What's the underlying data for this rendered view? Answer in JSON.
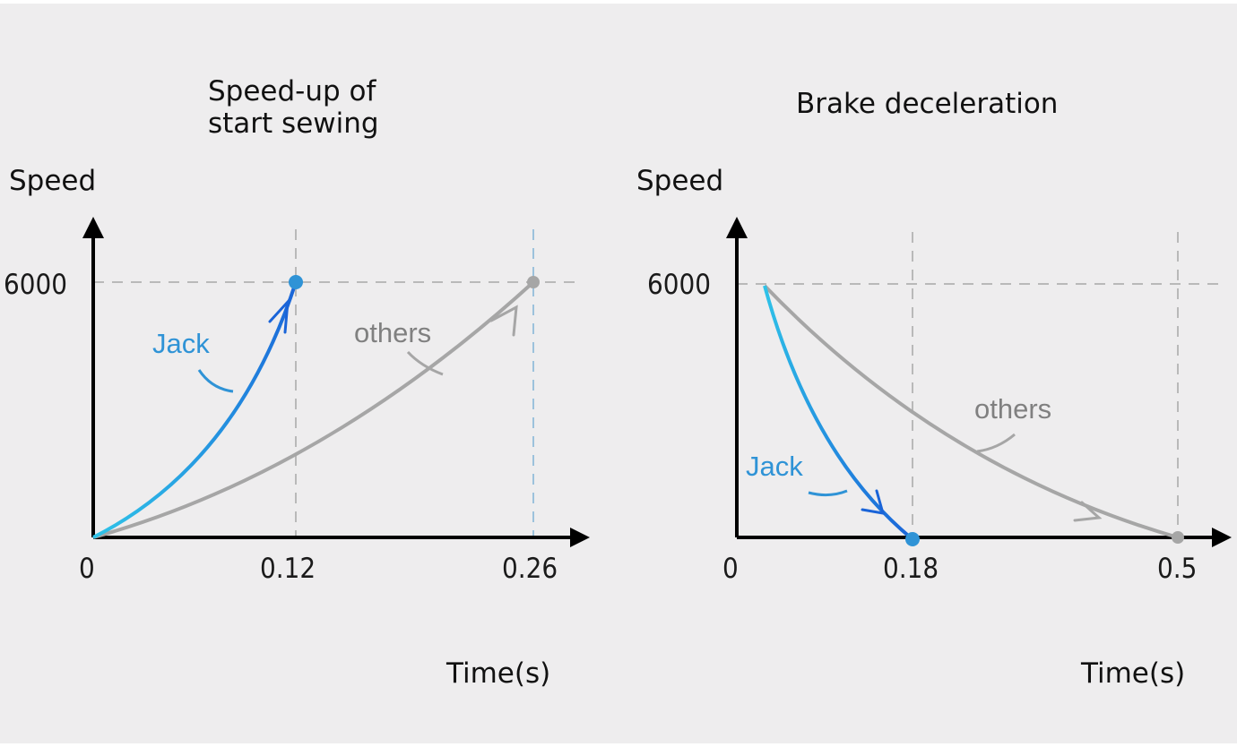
{
  "chart_data": [
    {
      "type": "line",
      "title_lines": [
        "Speed-up of",
        "start sewing"
      ],
      "ylabel": "Speed",
      "xlabel": "Time(s)",
      "x_ticks": [
        "0",
        "0.12",
        "0.26"
      ],
      "y_ticks": [
        "6000"
      ],
      "xlim": [
        0,
        0.26
      ],
      "ylim": [
        0,
        6000
      ],
      "series": [
        {
          "name": "Jack",
          "color": "#2f93d6",
          "x": [
            0,
            0.12
          ],
          "y": [
            0,
            6000
          ]
        },
        {
          "name": "others",
          "color": "#a6a6a6",
          "x": [
            0,
            0.26
          ],
          "y": [
            0,
            6000
          ]
        }
      ]
    },
    {
      "type": "line",
      "title_lines": [
        "Brake deceleration"
      ],
      "ylabel": "Speed",
      "xlabel": "Time(s)",
      "x_ticks": [
        "0",
        "0.18",
        "0.5"
      ],
      "y_ticks": [
        "6000"
      ],
      "xlim": [
        0,
        0.5
      ],
      "ylim": [
        0,
        6000
      ],
      "series": [
        {
          "name": "Jack",
          "color": "#2f93d6",
          "x": [
            0,
            0.18
          ],
          "y": [
            6000,
            0
          ]
        },
        {
          "name": "others",
          "color": "#a6a6a6",
          "x": [
            0,
            0.5
          ],
          "y": [
            6000,
            0
          ]
        }
      ]
    }
  ]
}
